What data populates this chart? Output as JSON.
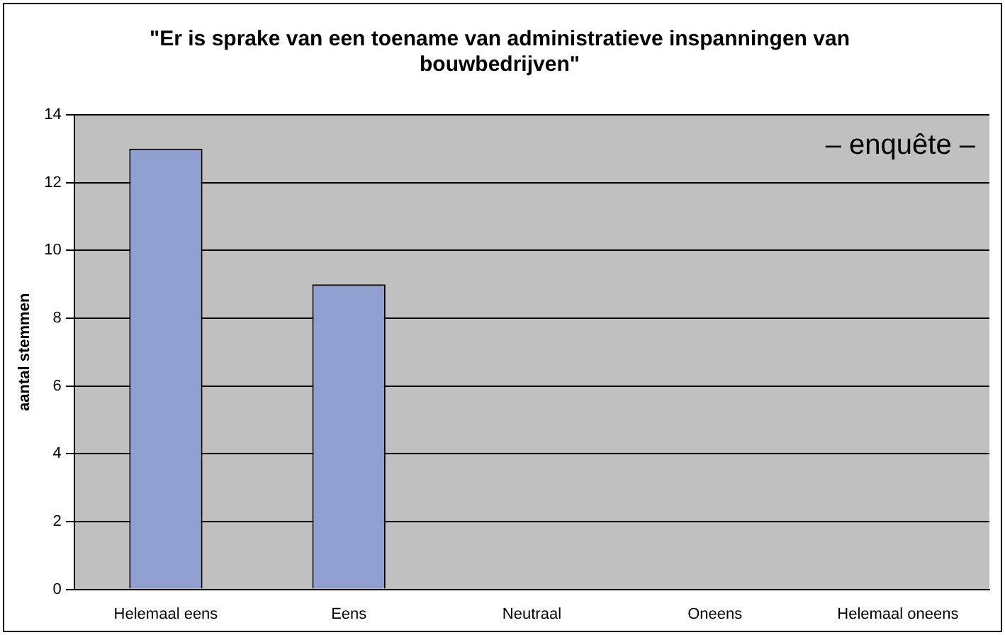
{
  "chart_data": {
    "type": "bar",
    "title": "\"Er is sprake van een toename van administratieve inspanningen van bouwbedrijven\"",
    "ylabel": "aantal stemmen",
    "categories": [
      "Helemaal eens",
      "Eens",
      "Neutraal",
      "Oneens",
      "Helemaal oneens"
    ],
    "values": [
      13,
      9,
      0,
      0,
      0
    ],
    "color": "#8e9fd0",
    "ylim": [
      0,
      14
    ],
    "yticks": [
      0,
      2,
      4,
      6,
      8,
      10,
      12,
      14
    ],
    "grid": "y",
    "legend": false,
    "annotations": [
      "– enquête –"
    ]
  }
}
